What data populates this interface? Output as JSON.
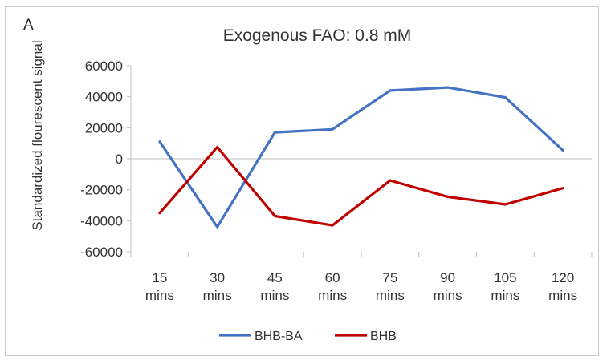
{
  "panel_label": "A",
  "chart_data": {
    "type": "line",
    "title": "Exogenous FAO: 0.8 mM",
    "xlabel": "",
    "ylabel": "Standardized flourescent signal",
    "categories": [
      [
        "15",
        "mins"
      ],
      [
        "30",
        "mins"
      ],
      [
        "45",
        "mins"
      ],
      [
        "60",
        "mins"
      ],
      [
        "75",
        "mins"
      ],
      [
        "90",
        "mins"
      ],
      [
        "105",
        "mins"
      ],
      [
        "120",
        "mins"
      ]
    ],
    "ylim": [
      -60000,
      60000
    ],
    "yticks": [
      "60000",
      "40000",
      "20000",
      "0",
      "-20000",
      "-40000",
      "-60000"
    ],
    "ytick_values": [
      60000,
      40000,
      20000,
      0,
      -20000,
      -40000,
      -60000
    ],
    "grid": false,
    "legend_position": "bottom",
    "series": [
      {
        "name": "BHB-BA",
        "color": "#4472c4",
        "values": [
          11000,
          -44000,
          17000,
          19000,
          44000,
          46000,
          39500,
          5500
        ]
      },
      {
        "name": "BHB",
        "color": "#c00000",
        "values": [
          -35000,
          7500,
          -37000,
          -43000,
          -14000,
          -24500,
          -29500,
          -19000
        ]
      }
    ]
  }
}
